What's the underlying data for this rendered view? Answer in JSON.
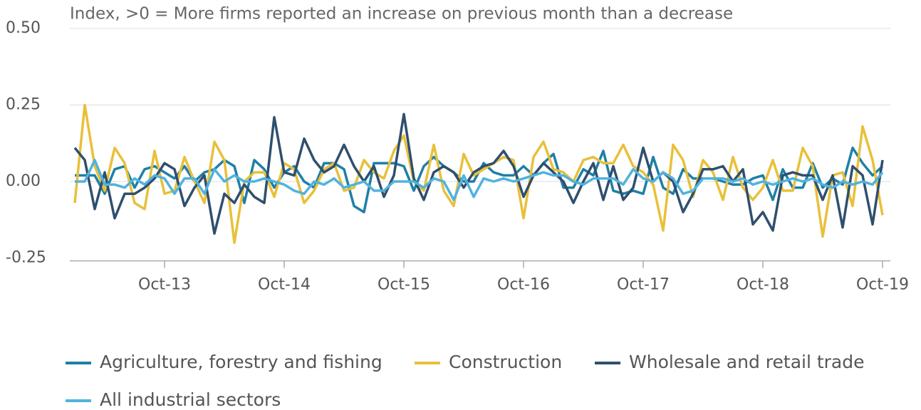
{
  "chart_data": {
    "type": "line",
    "title": "Index, >0 = More firms reported an increase on previous month than a decrease",
    "categories": [
      null,
      null,
      null,
      null,
      null,
      null,
      null,
      null,
      null,
      "Oct-13",
      null,
      null,
      null,
      null,
      null,
      null,
      null,
      null,
      null,
      null,
      null,
      "Oct-14",
      null,
      null,
      null,
      null,
      null,
      null,
      null,
      null,
      null,
      null,
      null,
      "Oct-15",
      null,
      null,
      null,
      null,
      null,
      null,
      null,
      null,
      null,
      null,
      null,
      "Oct-16",
      null,
      null,
      null,
      null,
      null,
      null,
      null,
      null,
      null,
      null,
      null,
      "Oct-17",
      null,
      null,
      null,
      null,
      null,
      null,
      null,
      null,
      null,
      null,
      null,
      "Oct-18",
      null,
      null,
      null,
      null,
      null,
      null,
      null,
      null,
      null,
      null,
      null,
      "Oct-19"
    ],
    "series": [
      {
        "name": "Agriculture, forestry and fishing",
        "color": "#1f7fa6",
        "values": [
          0.02,
          0.02,
          0.02,
          -0.04,
          0.04,
          0.05,
          -0.02,
          0.04,
          0.05,
          0.03,
          0.01,
          0.05,
          0.0,
          0.03,
          0.04,
          0.07,
          0.05,
          -0.07,
          0.07,
          0.04,
          -0.02,
          0.03,
          0.05,
          0.0,
          -0.02,
          0.06,
          0.06,
          0.04,
          -0.08,
          -0.1,
          0.06,
          0.06,
          0.06,
          0.05,
          -0.03,
          0.05,
          0.08,
          0.05,
          0.03,
          0.0,
          0.0,
          0.06,
          0.03,
          0.02,
          0.02,
          0.05,
          0.02,
          0.06,
          0.09,
          -0.02,
          -0.02,
          0.04,
          0.02,
          0.1,
          -0.03,
          -0.04,
          -0.03,
          -0.04,
          0.08,
          -0.02,
          -0.04,
          0.04,
          0.01,
          0.01,
          0.01,
          0.0,
          -0.01,
          -0.01,
          0.01,
          0.02,
          -0.06,
          0.04,
          -0.02,
          -0.02,
          0.06,
          -0.02,
          0.01,
          -0.01,
          0.11,
          0.06,
          0.02,
          0.05
        ]
      },
      {
        "name": "Construction",
        "color": "#e8c03a",
        "values": [
          -0.07,
          0.25,
          0.05,
          -0.03,
          0.11,
          0.06,
          -0.07,
          -0.09,
          0.1,
          -0.04,
          -0.03,
          0.08,
          0.0,
          -0.07,
          0.13,
          0.07,
          -0.2,
          0.0,
          0.03,
          0.03,
          -0.05,
          0.06,
          0.04,
          -0.07,
          -0.03,
          0.04,
          0.06,
          -0.03,
          -0.02,
          0.07,
          0.03,
          0.01,
          0.1,
          0.15,
          0.0,
          -0.03,
          0.12,
          -0.03,
          -0.08,
          0.09,
          0.02,
          0.04,
          0.06,
          0.08,
          0.07,
          -0.12,
          0.08,
          0.13,
          0.04,
          0.03,
          0.0,
          0.07,
          0.08,
          0.06,
          0.06,
          0.12,
          0.05,
          0.03,
          -0.01,
          -0.16,
          0.12,
          0.07,
          -0.05,
          0.07,
          0.03,
          -0.06,
          0.08,
          -0.02,
          -0.06,
          -0.02,
          0.07,
          -0.03,
          -0.03,
          0.11,
          0.05,
          -0.18,
          0.02,
          0.03,
          -0.08,
          0.18,
          0.07,
          -0.11
        ]
      },
      {
        "name": "Wholesale and retail trade",
        "color": "#2f4f6e",
        "values": [
          0.11,
          0.07,
          -0.09,
          0.03,
          -0.12,
          -0.04,
          -0.04,
          -0.02,
          0.01,
          0.06,
          0.04,
          -0.08,
          -0.02,
          0.02,
          -0.17,
          -0.04,
          -0.07,
          -0.01,
          -0.05,
          -0.07,
          0.21,
          0.03,
          0.02,
          0.14,
          0.07,
          0.03,
          0.05,
          0.12,
          0.05,
          0.0,
          0.05,
          -0.05,
          0.02,
          0.22,
          0.01,
          -0.06,
          0.03,
          0.05,
          0.03,
          -0.02,
          0.03,
          0.05,
          0.06,
          0.1,
          0.05,
          -0.05,
          0.02,
          0.06,
          0.03,
          0.0,
          -0.07,
          0.0,
          0.06,
          -0.06,
          0.05,
          -0.06,
          -0.02,
          0.11,
          0.0,
          0.03,
          0.0,
          -0.1,
          -0.04,
          0.04,
          0.04,
          0.05,
          0.0,
          0.04,
          -0.14,
          -0.1,
          -0.16,
          0.02,
          0.03,
          0.02,
          0.02,
          -0.06,
          0.02,
          -0.15,
          0.05,
          0.02,
          -0.14,
          0.07
        ]
      },
      {
        "name": "All industrial sectors",
        "color": "#4fb3de",
        "values": [
          0.0,
          0.0,
          0.07,
          -0.01,
          -0.01,
          -0.02,
          0.01,
          -0.01,
          0.02,
          0.01,
          -0.04,
          0.01,
          0.01,
          -0.04,
          0.04,
          0.0,
          0.02,
          0.0,
          0.0,
          0.01,
          0.0,
          -0.01,
          -0.03,
          -0.04,
          0.0,
          -0.01,
          0.01,
          -0.02,
          -0.01,
          0.0,
          -0.03,
          -0.03,
          0.0,
          0.0,
          0.0,
          -0.02,
          0.01,
          0.0,
          -0.06,
          0.02,
          -0.05,
          0.01,
          0.0,
          0.01,
          0.0,
          0.01,
          0.02,
          0.03,
          0.02,
          0.02,
          0.0,
          -0.01,
          0.01,
          0.01,
          0.01,
          -0.01,
          0.04,
          0.01,
          0.0,
          0.03,
          0.01,
          -0.04,
          -0.03,
          0.01,
          0.01,
          0.01,
          0.0,
          0.01,
          -0.01,
          0.0,
          -0.01,
          0.0,
          0.01,
          0.0,
          0.01,
          -0.01,
          -0.02,
          0.0,
          -0.01,
          0.0,
          -0.01,
          0.03
        ]
      }
    ],
    "ylim": [
      -0.25,
      0.5
    ],
    "yticks": [
      {
        "value": -0.25,
        "label": "-0.25"
      },
      {
        "value": 0,
        "label": "0.00"
      },
      {
        "value": 0.25,
        "label": "0.25"
      },
      {
        "value": 0.5,
        "label": "0.50"
      }
    ],
    "grid": true
  }
}
